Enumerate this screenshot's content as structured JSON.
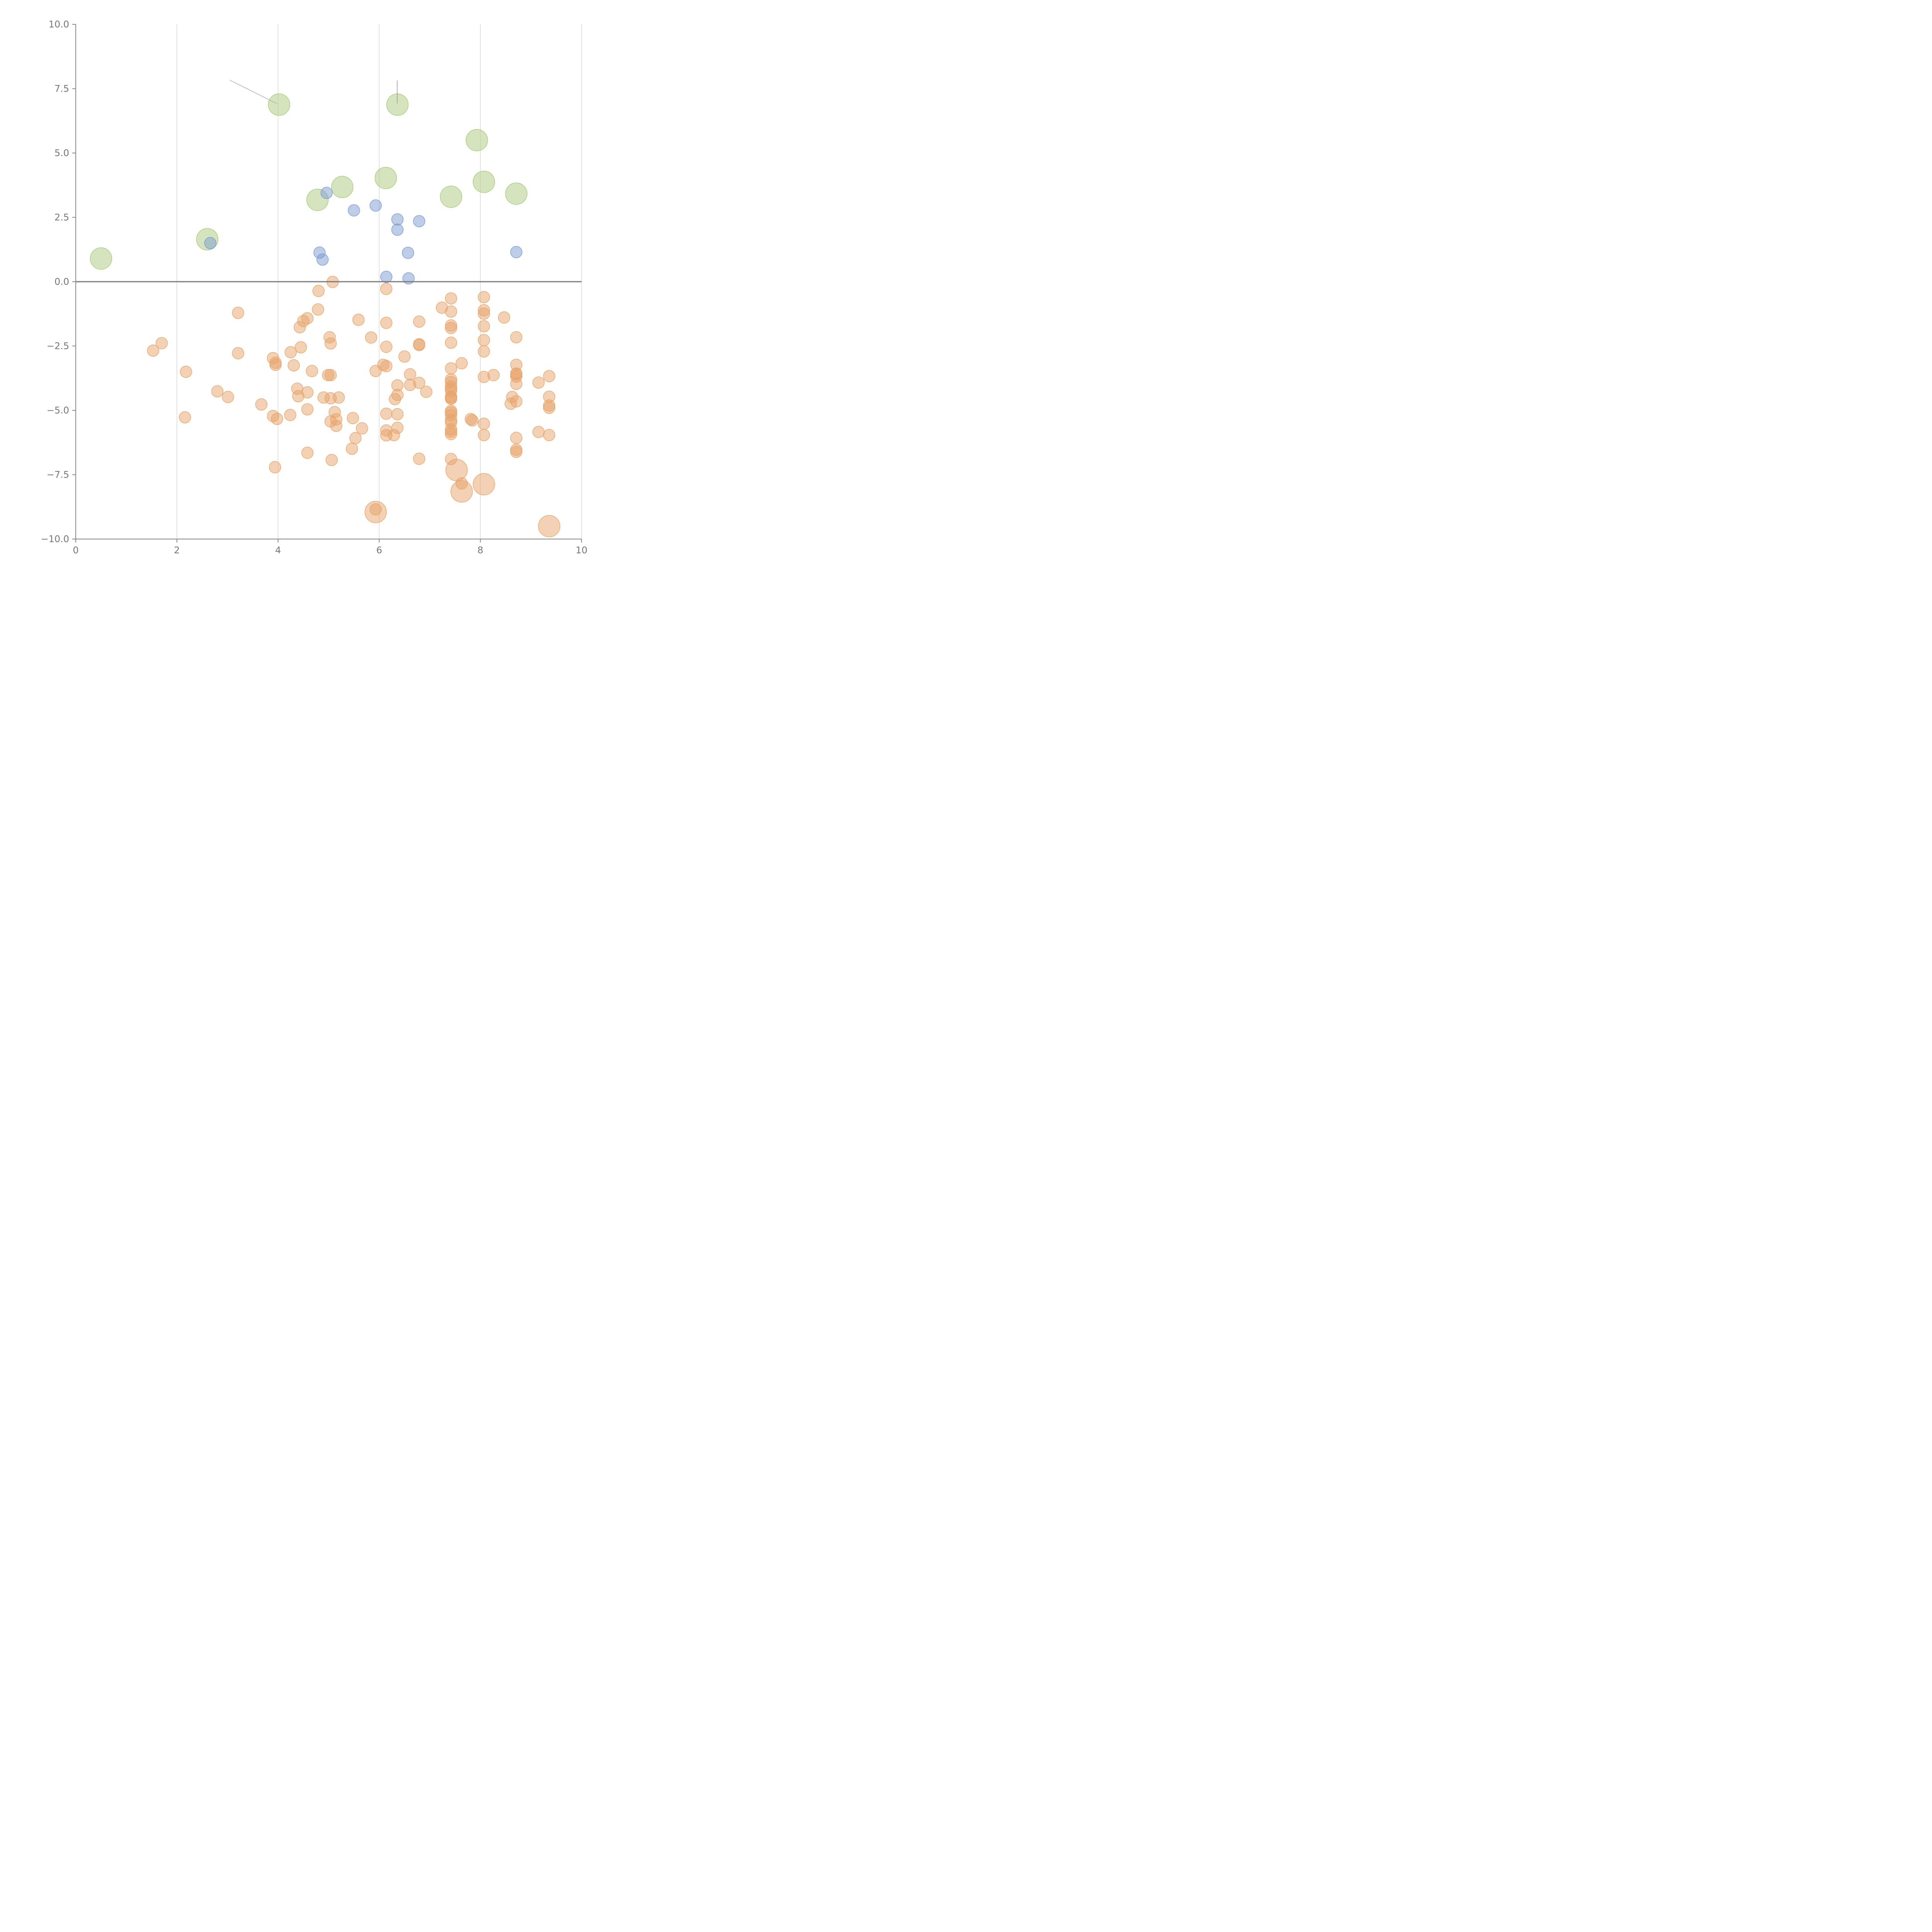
{
  "chart_data": {
    "type": "scatter",
    "xlim": [
      0,
      10
    ],
    "ylim": [
      -10,
      10
    ],
    "x_ticks": [
      "0",
      "2",
      "4",
      "6",
      "8",
      "10"
    ],
    "y_ticks": [
      "10.0",
      "7.5",
      "5.0",
      "2.5",
      "0.0",
      "−2.5",
      "−5.0",
      "−7.5",
      "−10.0"
    ],
    "x_tick_values": [
      0,
      2,
      4,
      6,
      8,
      10
    ],
    "y_tick_values": [
      10,
      7.5,
      5,
      2.5,
      0,
      -2.5,
      -5,
      -7.5,
      -10
    ],
    "grid": "vertical lines at x ticks",
    "zero_line": true,
    "legend": "none",
    "colors": {
      "green": "#a9c97a",
      "blue": "#7b9bd1",
      "orange": "#e8a46a"
    },
    "series": [
      {
        "color": "#a9c97a",
        "size": "large",
        "points": [
          [
            0.5,
            0.9
          ],
          [
            2.6,
            1.65
          ],
          [
            4.02,
            6.88
          ],
          [
            4.78,
            3.18
          ],
          [
            5.27,
            3.68
          ],
          [
            6.13,
            4.03
          ],
          [
            6.36,
            6.88
          ],
          [
            7.42,
            3.3
          ],
          [
            7.93,
            5.5
          ],
          [
            8.07,
            3.88
          ],
          [
            8.71,
            3.42
          ]
        ]
      },
      {
        "color": "#7b9bd1",
        "size": "small",
        "points": [
          [
            2.66,
            1.5
          ],
          [
            4.82,
            1.13
          ],
          [
            4.88,
            0.86
          ],
          [
            4.96,
            3.45
          ],
          [
            5.5,
            2.77
          ],
          [
            5.93,
            2.96
          ],
          [
            6.14,
            0.19
          ],
          [
            6.36,
            2.42
          ],
          [
            6.36,
            2.02
          ],
          [
            6.57,
            1.12
          ],
          [
            6.58,
            0.13
          ],
          [
            6.79,
            2.35
          ],
          [
            8.71,
            1.15
          ]
        ]
      },
      {
        "color": "#e8a46a",
        "size": "small",
        "points": [
          [
            1.53,
            -2.68
          ],
          [
            1.7,
            -2.39
          ],
          [
            2.16,
            -5.27
          ],
          [
            2.18,
            -3.5
          ],
          [
            2.8,
            -4.26
          ],
          [
            3.01,
            -4.48
          ],
          [
            3.21,
            -1.21
          ],
          [
            3.21,
            -2.78
          ],
          [
            3.67,
            -4.77
          ],
          [
            3.9,
            -2.97
          ],
          [
            3.9,
            -5.22
          ],
          [
            3.94,
            -7.21
          ],
          [
            3.95,
            -3.15
          ],
          [
            3.95,
            -3.23
          ],
          [
            3.98,
            -5.33
          ],
          [
            4.24,
            -5.18
          ],
          [
            4.25,
            -2.74
          ],
          [
            4.31,
            -3.25
          ],
          [
            4.38,
            -4.16
          ],
          [
            4.4,
            -4.45
          ],
          [
            4.43,
            -1.77
          ],
          [
            4.45,
            -2.55
          ],
          [
            4.5,
            -1.53
          ],
          [
            4.58,
            -1.42
          ],
          [
            4.58,
            -4.3
          ],
          [
            4.58,
            -4.96
          ],
          [
            4.58,
            -6.65
          ],
          [
            4.67,
            -3.47
          ],
          [
            4.79,
            -1.08
          ],
          [
            4.8,
            -0.36
          ],
          [
            4.9,
            -4.5
          ],
          [
            4.99,
            -3.63
          ],
          [
            5.02,
            -2.16
          ],
          [
            5.04,
            -2.4
          ],
          [
            5.04,
            -3.63
          ],
          [
            5.04,
            -4.53
          ],
          [
            5.04,
            -5.43
          ],
          [
            5.06,
            -6.93
          ],
          [
            5.08,
            -0.01
          ],
          [
            5.12,
            -5.07
          ],
          [
            5.15,
            -5.35
          ],
          [
            5.15,
            -5.6
          ],
          [
            5.2,
            -4.5
          ],
          [
            5.46,
            -6.49
          ],
          [
            5.48,
            -5.3
          ],
          [
            5.53,
            -6.08
          ],
          [
            5.59,
            -1.48
          ],
          [
            5.66,
            -5.7
          ],
          [
            5.84,
            -2.17
          ],
          [
            5.93,
            -3.47
          ],
          [
            5.93,
            -8.85
          ],
          [
            6.08,
            -3.23
          ],
          [
            6.14,
            -0.28
          ],
          [
            6.14,
            -1.6
          ],
          [
            6.14,
            -2.53
          ],
          [
            6.14,
            -3.28
          ],
          [
            6.14,
            -5.13
          ],
          [
            6.14,
            -5.78
          ],
          [
            6.14,
            -5.97
          ],
          [
            6.29,
            -5.96
          ],
          [
            6.31,
            -4.56
          ],
          [
            6.36,
            -4.03
          ],
          [
            6.36,
            -4.4
          ],
          [
            6.36,
            -5.15
          ],
          [
            6.36,
            -5.68
          ],
          [
            6.5,
            -2.91
          ],
          [
            6.61,
            -3.6
          ],
          [
            6.61,
            -4.01
          ],
          [
            6.79,
            -1.55
          ],
          [
            6.79,
            -2.43
          ],
          [
            6.79,
            -2.46
          ],
          [
            6.79,
            -3.93
          ],
          [
            6.79,
            -6.88
          ],
          [
            6.93,
            -4.28
          ],
          [
            7.24,
            -1.01
          ],
          [
            7.42,
            -0.65
          ],
          [
            7.42,
            -1.16
          ],
          [
            7.42,
            -1.7
          ],
          [
            7.42,
            -1.8
          ],
          [
            7.42,
            -2.37
          ],
          [
            7.42,
            -3.37
          ],
          [
            7.42,
            -3.8
          ],
          [
            7.42,
            -3.9
          ],
          [
            7.42,
            -4.07
          ],
          [
            7.42,
            -4.16
          ],
          [
            7.42,
            -4.24
          ],
          [
            7.42,
            -4.47
          ],
          [
            7.42,
            -4.51
          ],
          [
            7.42,
            -4.55
          ],
          [
            7.42,
            -5.02
          ],
          [
            7.42,
            -5.08
          ],
          [
            7.42,
            -5.19
          ],
          [
            7.42,
            -5.38
          ],
          [
            7.42,
            -5.47
          ],
          [
            7.42,
            -5.74
          ],
          [
            7.42,
            -5.83
          ],
          [
            7.42,
            -5.92
          ],
          [
            7.42,
            -6.89
          ],
          [
            7.63,
            -3.17
          ],
          [
            7.63,
            -7.84
          ],
          [
            7.81,
            -5.34
          ],
          [
            7.84,
            -5.39
          ],
          [
            8.07,
            -0.6
          ],
          [
            8.07,
            -1.11
          ],
          [
            8.07,
            -1.24
          ],
          [
            8.07,
            -1.73
          ],
          [
            8.07,
            -2.27
          ],
          [
            8.07,
            -2.71
          ],
          [
            8.07,
            -3.7
          ],
          [
            8.07,
            -5.52
          ],
          [
            8.07,
            -5.96
          ],
          [
            8.26,
            -3.63
          ],
          [
            8.47,
            -1.39
          ],
          [
            8.6,
            -4.74
          ],
          [
            8.63,
            -4.48
          ],
          [
            8.71,
            -2.16
          ],
          [
            8.71,
            -3.23
          ],
          [
            8.71,
            -3.57
          ],
          [
            8.71,
            -3.6
          ],
          [
            8.71,
            -3.69
          ],
          [
            8.71,
            -3.97
          ],
          [
            8.71,
            -4.65
          ],
          [
            8.71,
            -6.07
          ],
          [
            8.71,
            -6.53
          ],
          [
            8.71,
            -6.61
          ],
          [
            9.15,
            -3.92
          ],
          [
            9.15,
            -5.84
          ],
          [
            9.36,
            -3.67
          ],
          [
            9.36,
            -4.47
          ],
          [
            9.36,
            -4.81
          ],
          [
            9.36,
            -4.9
          ],
          [
            9.36,
            -5.96
          ]
        ]
      },
      {
        "color": "#e8a46a",
        "size": "large",
        "points": [
          [
            5.93,
            -8.95
          ],
          [
            7.53,
            -7.32
          ],
          [
            7.63,
            -8.15
          ],
          [
            8.07,
            -7.87
          ],
          [
            9.36,
            -9.5
          ]
        ]
      }
    ]
  }
}
